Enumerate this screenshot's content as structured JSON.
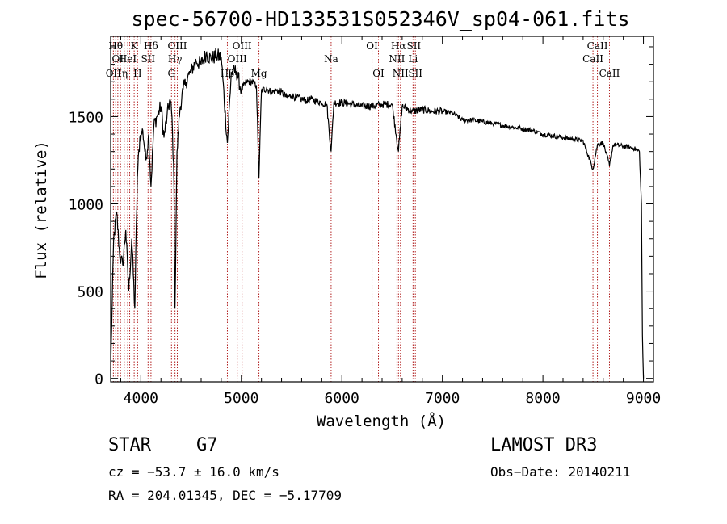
{
  "chart_data": {
    "type": "line",
    "title": "spec-56700-HD133531S052346V_sp04-061.fits",
    "xlabel": "Wavelength (Å)",
    "ylabel": "Flux (relative)",
    "xlim": [
      3700,
      9100
    ],
    "ylim": [
      -20,
      1960
    ],
    "xticks": [
      4000,
      5000,
      6000,
      7000,
      8000,
      9000
    ],
    "yticks": [
      0,
      500,
      1000,
      1500
    ],
    "grid": false,
    "series": [
      {
        "name": "flux",
        "x": [
          3700,
          3730,
          3760,
          3790,
          3820,
          3850,
          3880,
          3910,
          3940,
          3965,
          3990,
          4020,
          4050,
          4080,
          4101,
          4130,
          4160,
          4200,
          4230,
          4260,
          4290,
          4310,
          4330,
          4340,
          4360,
          4390,
          4420,
          4450,
          4480,
          4500,
          4550,
          4600,
          4650,
          4700,
          4750,
          4800,
          4861,
          4900,
          4950,
          5000,
          5050,
          5100,
          5150,
          5175,
          5200,
          5250,
          5300,
          5350,
          5400,
          5450,
          5500,
          5550,
          5600,
          5650,
          5700,
          5750,
          5800,
          5850,
          5893,
          5920,
          6000,
          6100,
          6200,
          6300,
          6400,
          6500,
          6563,
          6600,
          6700,
          6800,
          6900,
          7000,
          7100,
          7200,
          7300,
          7400,
          7500,
          7600,
          7700,
          7800,
          7900,
          8000,
          8100,
          8200,
          8300,
          8400,
          8498,
          8542,
          8600,
          8662,
          8700,
          8800,
          8900,
          8960,
          8980,
          8990,
          9000
        ],
        "values": [
          40,
          800,
          950,
          700,
          650,
          850,
          500,
          800,
          400,
          1150,
          1380,
          1420,
          1250,
          1400,
          1100,
          1450,
          1500,
          1560,
          1380,
          1500,
          1600,
          1500,
          1100,
          400,
          1300,
          1550,
          1650,
          1700,
          1740,
          1760,
          1820,
          1800,
          1860,
          1830,
          1850,
          1840,
          1350,
          1750,
          1760,
          1650,
          1700,
          1700,
          1680,
          1150,
          1650,
          1660,
          1640,
          1650,
          1640,
          1610,
          1620,
          1610,
          1600,
          1590,
          1600,
          1590,
          1580,
          1570,
          1300,
          1580,
          1580,
          1570,
          1560,
          1560,
          1570,
          1570,
          1300,
          1560,
          1530,
          1540,
          1530,
          1530,
          1520,
          1480,
          1480,
          1470,
          1460,
          1450,
          1440,
          1430,
          1420,
          1400,
          1390,
          1380,
          1370,
          1360,
          1200,
          1340,
          1350,
          1220,
          1340,
          1330,
          1320,
          1300,
          1000,
          250,
          0
        ]
      }
    ],
    "lines": [
      {
        "w": 3727,
        "label": "OII",
        "row": 3
      },
      {
        "w": 3750,
        "label": "Hθ",
        "row": 1
      },
      {
        "w": 3771,
        "label": "OI",
        "row": 2
      },
      {
        "w": 3798,
        "label": "Hη",
        "row": 3
      },
      {
        "w": 3835,
        "label": "",
        "row": 0
      },
      {
        "w": 3869,
        "label": "HeI",
        "row": 2
      },
      {
        "w": 3889,
        "label": "",
        "row": 0
      },
      {
        "w": 3934,
        "label": "K",
        "row": 1
      },
      {
        "w": 3968,
        "label": "H",
        "row": 3
      },
      {
        "w": 4072,
        "label": "SII",
        "row": 2
      },
      {
        "w": 4101,
        "label": "Hδ",
        "row": 1
      },
      {
        "w": 4305,
        "label": "G",
        "row": 3
      },
      {
        "w": 4340,
        "label": "Hγ",
        "row": 2
      },
      {
        "w": 4363,
        "label": "OIII",
        "row": 1
      },
      {
        "w": 4861,
        "label": "Hβ",
        "row": 3
      },
      {
        "w": 4959,
        "label": "OIII",
        "row": 2
      },
      {
        "w": 5007,
        "label": "OIII",
        "row": 1
      },
      {
        "w": 5175,
        "label": "Mg",
        "row": 3
      },
      {
        "w": 5893,
        "label": "Na",
        "row": 2
      },
      {
        "w": 6300,
        "label": "OI",
        "row": 1
      },
      {
        "w": 6364,
        "label": "OI",
        "row": 3
      },
      {
        "w": 6548,
        "label": "NII",
        "row": 2
      },
      {
        "w": 6563,
        "label": "Hα",
        "row": 1
      },
      {
        "w": 6583,
        "label": "NII",
        "row": 3
      },
      {
        "w": 6708,
        "label": "Li",
        "row": 2
      },
      {
        "w": 6716,
        "label": "SII",
        "row": 1
      },
      {
        "w": 6731,
        "label": "SII",
        "row": 3
      },
      {
        "w": 8498,
        "label": "CaII",
        "row": 2
      },
      {
        "w": 8542,
        "label": "CaII",
        "row": 1
      },
      {
        "w": 8662,
        "label": "CaII",
        "row": 3
      }
    ]
  },
  "info": {
    "object_class": "STAR",
    "subclass": "G7",
    "survey": "LAMOST DR3",
    "cz": "cz = −53.7 ± 16.0 km/s",
    "obs_date": "Obs−Date: 20140211",
    "radec": "RA = 204.01345, DEC =  −5.17709"
  }
}
